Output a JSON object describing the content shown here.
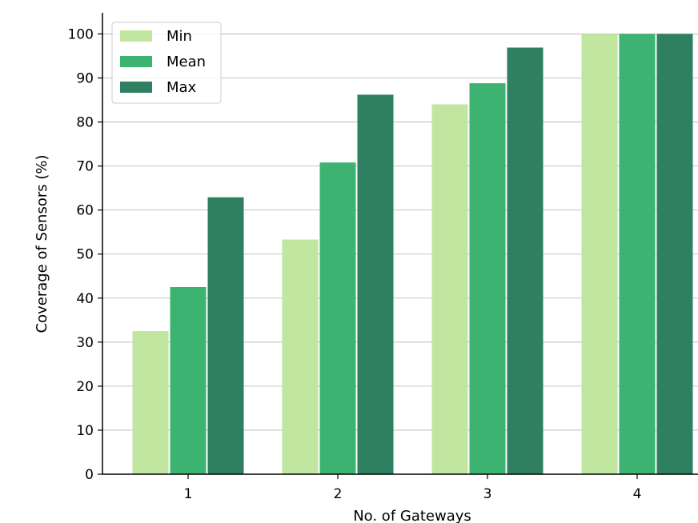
{
  "chart_data": {
    "type": "bar",
    "xlabel": "No. of Gateways",
    "ylabel": "Coverage of Sensors (%)",
    "categories": [
      "1",
      "2",
      "3",
      "4"
    ],
    "series": [
      {
        "name": "Min",
        "values": [
          32.5,
          53.3,
          84.0,
          100.0
        ],
        "color": "#c0e6a0"
      },
      {
        "name": "Mean",
        "values": [
          42.5,
          70.8,
          88.8,
          100.0
        ],
        "color": "#3cb371"
      },
      {
        "name": "Max",
        "values": [
          62.9,
          86.2,
          96.9,
          100.0
        ],
        "color": "#2e8060"
      }
    ],
    "ylim": [
      0,
      104.8
    ],
    "yticks": [
      0,
      10,
      20,
      30,
      40,
      50,
      60,
      70,
      80,
      90,
      100
    ],
    "grid": "horizontal",
    "legend_position": "top-left"
  }
}
